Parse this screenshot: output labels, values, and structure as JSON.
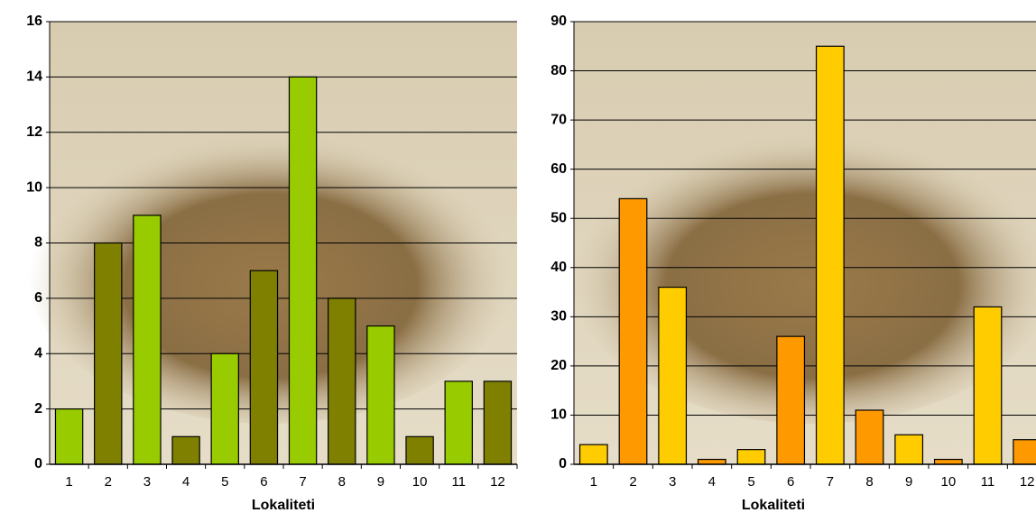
{
  "chart_data": [
    {
      "type": "bar",
      "x_label": "Lokaliteti",
      "categories": [
        "1",
        "2",
        "3",
        "4",
        "5",
        "6",
        "7",
        "8",
        "9",
        "10",
        "11",
        "12"
      ],
      "values": [
        2,
        8,
        9,
        1,
        4,
        7,
        14,
        6,
        5,
        1,
        3,
        3
      ],
      "colors": [
        "#99cc00",
        "#808000",
        "#99cc00",
        "#808000",
        "#99cc00",
        "#808000",
        "#99cc00",
        "#808000",
        "#99cc00",
        "#808000",
        "#99cc00",
        "#808000"
      ],
      "ylim": [
        0,
        16
      ],
      "yticks": [
        0,
        2,
        4,
        6,
        8,
        10,
        12,
        14,
        16
      ],
      "grid": true
    },
    {
      "type": "bar",
      "x_label": "Lokaliteti",
      "categories": [
        "1",
        "2",
        "3",
        "4",
        "5",
        "6",
        "7",
        "8",
        "9",
        "10",
        "11",
        "12"
      ],
      "values": [
        4,
        54,
        36,
        1,
        3,
        26,
        85,
        11,
        6,
        1,
        32,
        5
      ],
      "colors": [
        "#ffcc00",
        "#ff9900",
        "#ffcc00",
        "#ff9900",
        "#ffcc00",
        "#ff9900",
        "#ffcc00",
        "#ff9900",
        "#ffcc00",
        "#ff9900",
        "#ffcc00",
        "#ff9900"
      ],
      "ylim": [
        0,
        90
      ],
      "yticks": [
        0,
        10,
        20,
        30,
        40,
        50,
        60,
        70,
        80,
        90
      ],
      "grid": true
    }
  ]
}
